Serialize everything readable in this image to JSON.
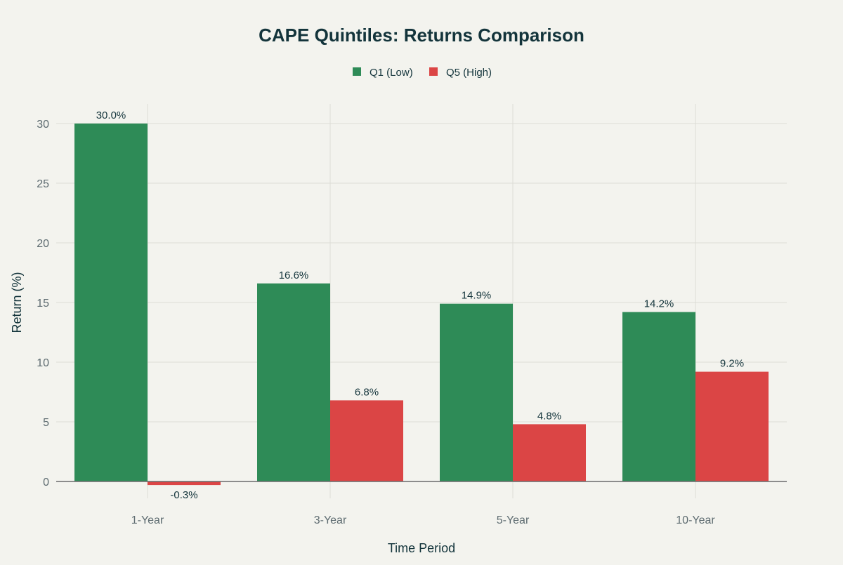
{
  "chart_data": {
    "type": "bar",
    "title": "CAPE Quintiles: Returns Comparison",
    "xlabel": "Time Period",
    "ylabel": "Return (%)",
    "categories": [
      "1-Year",
      "3-Year",
      "5-Year",
      "10-Year"
    ],
    "series": [
      {
        "name": "Q1 (Low)",
        "color": "#2e8b57",
        "values": [
          30.0,
          16.6,
          14.9,
          14.2
        ],
        "labels": [
          "30.0%",
          "16.6%",
          "14.9%",
          "14.2%"
        ]
      },
      {
        "name": "Q5 (High)",
        "color": "#db4545",
        "values": [
          -0.3,
          6.8,
          4.8,
          9.2
        ],
        "labels": [
          "-0.3%",
          "6.8%",
          "4.8%",
          "9.2%"
        ]
      }
    ],
    "yticks": [
      0,
      5,
      10,
      15,
      20,
      25,
      30
    ],
    "ylim": [
      -1.8,
      31.8
    ],
    "grid": true,
    "legend": "top-center"
  }
}
